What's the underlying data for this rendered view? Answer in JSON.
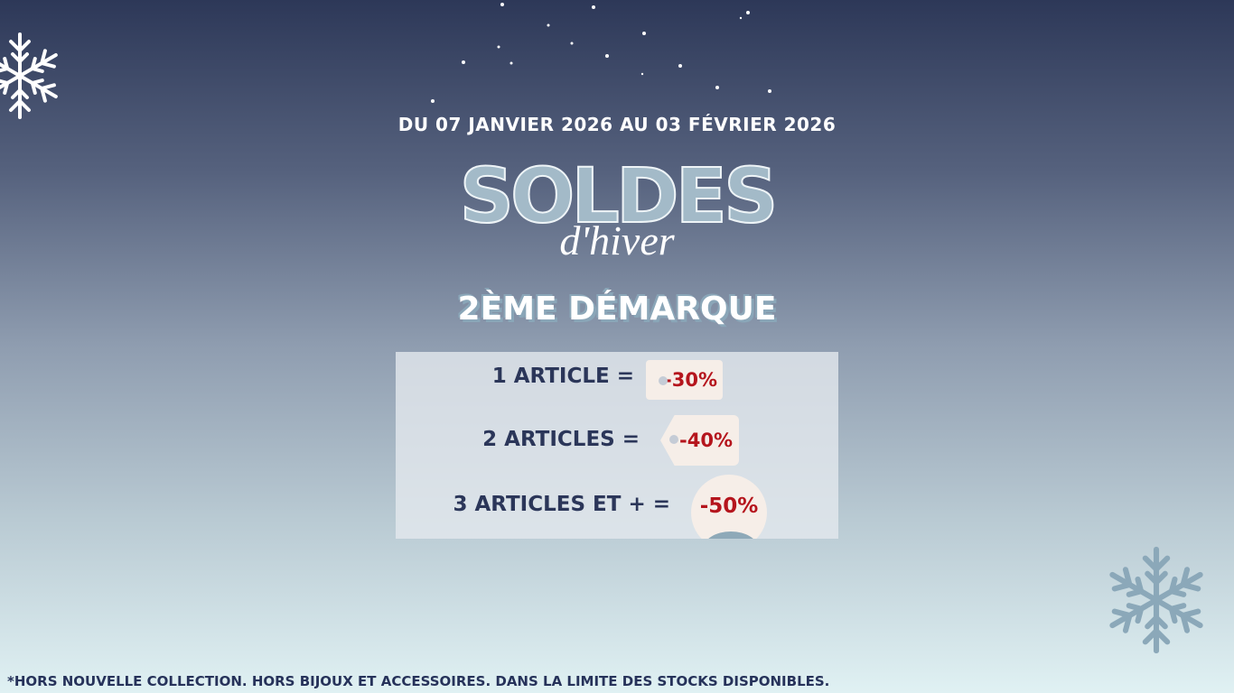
{
  "banner": {
    "date": "DU 07 JANVIER 2026 AU 03 FÉVRIER 2026",
    "title": "SOLDES",
    "subtitle": "d'hiver",
    "markdown": "2ÈME DÉMARQUE",
    "offers": [
      {
        "label": "1 ARTICLE =",
        "discount": "-30%"
      },
      {
        "label": "2 ARTICLES =",
        "discount": "-40%"
      },
      {
        "label": "3 ARTICLES ET + =",
        "discount": "-50%"
      }
    ],
    "footnote": "*HORS NOUVELLE COLLECTION. HORS BIJOUX ET ACCESSOIRES. DANS LA LIMITE DES STOCKS DISPONIBLES."
  }
}
